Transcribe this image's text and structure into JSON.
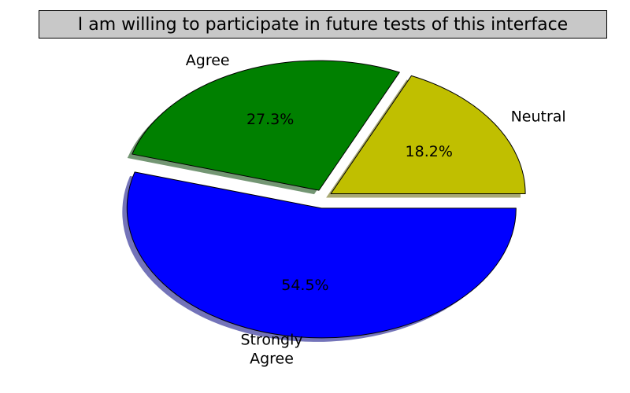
{
  "chart_data": {
    "type": "pie",
    "title": "I am willing to participate in future tests of this interface",
    "slices": [
      {
        "label": "Neutral",
        "value": 18.2,
        "pct_text": "18.2%",
        "color": "#c0bf00",
        "shadow_color": "#606000"
      },
      {
        "label": "Agree",
        "value": 27.3,
        "pct_text": "27.3%",
        "color": "#008000",
        "shadow_color": "#004000"
      },
      {
        "label": "Strongly Agree",
        "label_lines": [
          "Strongly",
          "Agree"
        ],
        "value": 54.5,
        "pct_text": "54.5%",
        "color": "#0000ff",
        "shadow_color": "#000080"
      }
    ],
    "start_angle_deg": 0,
    "direction": "counterclockwise",
    "exploded": true,
    "shadow": true,
    "legend": "none"
  }
}
